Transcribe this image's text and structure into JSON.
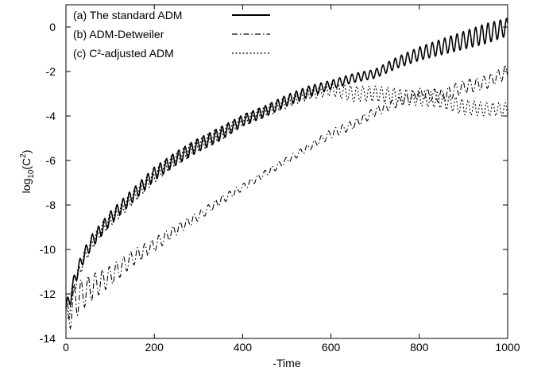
{
  "chart_data": {
    "type": "line",
    "xlabel": "-Time",
    "ylabel_base": "log",
    "ylabel_sub": "10",
    "ylabel_open": "(C",
    "ylabel_sup": "2",
    "ylabel_close": ")",
    "xlim": [
      0,
      1000
    ],
    "ylim": [
      -14,
      1
    ],
    "xticks": [
      0,
      200,
      400,
      600,
      800,
      1000
    ],
    "yticks": [
      0,
      -2,
      -4,
      -6,
      -8,
      -10,
      -12,
      -14
    ],
    "grid": false,
    "legend_position": "top-left",
    "series": [
      {
        "name": "(a) The standard ADM",
        "style": "solid",
        "x": [
          0,
          10,
          20,
          40,
          60,
          80,
          100,
          150,
          200,
          250,
          300,
          350,
          400,
          450,
          500,
          550,
          600,
          650,
          700,
          750,
          800,
          850,
          900,
          950,
          1000
        ],
        "y": [
          -12.6,
          -12.2,
          -11.3,
          -10.3,
          -9.6,
          -9.1,
          -8.6,
          -7.6,
          -6.6,
          -5.9,
          -5.3,
          -4.8,
          -4.2,
          -3.8,
          -3.3,
          -2.9,
          -2.6,
          -2.3,
          -2.1,
          -1.6,
          -1.2,
          -0.9,
          -0.6,
          -0.3,
          0.0
        ],
        "osc_amp": [
          0.3,
          0.3,
          0.3,
          0.3,
          0.3,
          0.3,
          0.3,
          0.3,
          0.3,
          0.3,
          0.3,
          0.3,
          0.25,
          0.25,
          0.25,
          0.25,
          0.2,
          0.2,
          0.2,
          0.25,
          0.3,
          0.35,
          0.4,
          0.45,
          0.4
        ],
        "osc_period": 14
      },
      {
        "name": "(b) ADM-Detweiler",
        "style": "dashdot",
        "x": [
          0,
          20,
          50,
          100,
          150,
          200,
          250,
          300,
          350,
          400,
          450,
          500,
          550,
          600,
          650,
          700,
          750,
          800,
          850,
          900,
          950,
          1000
        ],
        "y": [
          -13.2,
          -12.3,
          -11.8,
          -11.2,
          -10.4,
          -9.8,
          -9.1,
          -8.5,
          -7.8,
          -7.2,
          -6.6,
          -6.0,
          -5.4,
          -4.8,
          -4.4,
          -3.8,
          -3.4,
          -3.0,
          -3.1,
          -2.7,
          -2.5,
          -2.0
        ],
        "osc_amp": [
          0.8,
          0.8,
          0.6,
          0.45,
          0.35,
          0.3,
          0.25,
          0.2,
          0.2,
          0.15,
          0.15,
          0.15,
          0.15,
          0.2,
          0.2,
          0.2,
          0.2,
          0.25,
          0.3,
          0.3,
          0.3,
          0.3
        ],
        "osc_period": 16
      },
      {
        "name": "(c) C²-adjusted ADM",
        "style": "dotted",
        "x": [
          0,
          10,
          20,
          40,
          60,
          80,
          100,
          150,
          200,
          250,
          300,
          350,
          400,
          450,
          500,
          550,
          600,
          650,
          700,
          750,
          800,
          850,
          900,
          950,
          1000
        ],
        "y": [
          -13.2,
          -12.4,
          -11.6,
          -10.4,
          -9.7,
          -9.1,
          -8.7,
          -7.7,
          -6.7,
          -5.9,
          -5.3,
          -4.8,
          -4.2,
          -3.8,
          -3.4,
          -3.0,
          -2.8,
          -3.0,
          -3.0,
          -3.1,
          -3.2,
          -3.3,
          -3.6,
          -3.7,
          -3.7
        ],
        "osc_amp": [
          0.5,
          0.5,
          0.4,
          0.3,
          0.3,
          0.3,
          0.3,
          0.3,
          0.3,
          0.3,
          0.3,
          0.3,
          0.25,
          0.25,
          0.25,
          0.25,
          0.3,
          0.35,
          0.35,
          0.35,
          0.35,
          0.35,
          0.35,
          0.3,
          0.3
        ],
        "osc_period": 14
      }
    ]
  }
}
